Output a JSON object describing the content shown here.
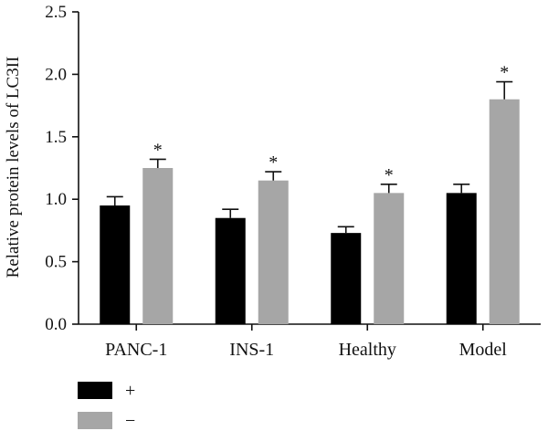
{
  "chart_data": {
    "type": "bar",
    "title": "",
    "xlabel": "",
    "ylabel": "Relative protein levels of LC3II",
    "ylim": [
      0,
      2.5
    ],
    "yticks": [
      "0.0",
      "0.5",
      "1.0",
      "1.5",
      "2.0",
      "2.5"
    ],
    "categories": [
      "PANC-1",
      "INS-1",
      "Healthy",
      "Model"
    ],
    "series": [
      {
        "name": "+",
        "color": "#000000",
        "values": [
          0.95,
          0.85,
          0.73,
          1.05
        ],
        "errors": [
          0.07,
          0.07,
          0.05,
          0.07
        ]
      },
      {
        "name": "−",
        "color": "#a6a6a6",
        "values": [
          1.25,
          1.15,
          1.05,
          1.8
        ],
        "errors": [
          0.07,
          0.07,
          0.07,
          0.14
        ]
      }
    ],
    "annotations": [
      {
        "series": 1,
        "category": 0,
        "text": "*"
      },
      {
        "series": 1,
        "category": 1,
        "text": "*"
      },
      {
        "series": 1,
        "category": 2,
        "text": "*"
      },
      {
        "series": 1,
        "category": 3,
        "text": "*"
      }
    ],
    "legend_position": "bottom-left",
    "grid": false
  }
}
